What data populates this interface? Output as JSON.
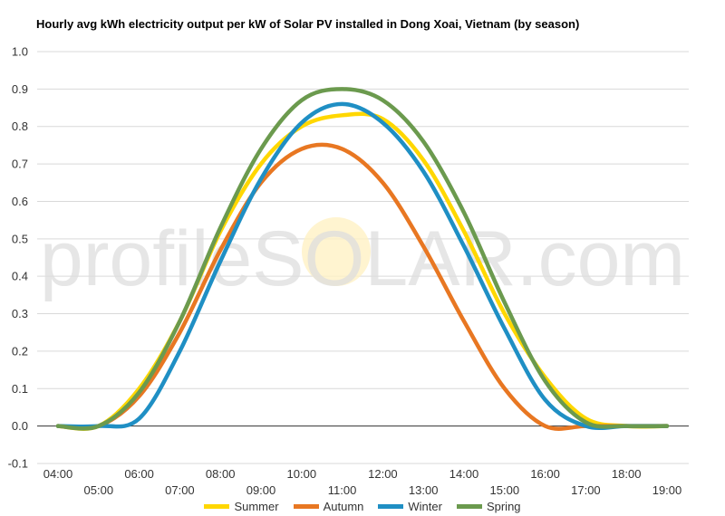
{
  "chart_data": {
    "type": "line",
    "title": "Hourly avg kWh electricity output per kW of Solar PV installed in Dong Xoai, Vietnam (by season)",
    "xlabel": "",
    "ylabel": "",
    "ylim": [
      -0.1,
      1.0
    ],
    "yticks": [
      "-0.1",
      "0.0",
      "0.1",
      "0.2",
      "0.3",
      "0.4",
      "0.5",
      "0.6",
      "0.7",
      "0.8",
      "0.9",
      "1.0"
    ],
    "x": [
      "04:00",
      "05:00",
      "06:00",
      "07:00",
      "08:00",
      "09:00",
      "10:00",
      "11:00",
      "12:00",
      "13:00",
      "14:00",
      "15:00",
      "16:00",
      "17:00",
      "18:00",
      "19:00"
    ],
    "grid": true,
    "legend_position": "bottom",
    "watermark": "profileSOLAR.com",
    "series": [
      {
        "name": "Summer",
        "color": "#ffd700",
        "values": [
          0.0,
          0.0,
          0.1,
          0.28,
          0.52,
          0.7,
          0.8,
          0.83,
          0.82,
          0.71,
          0.52,
          0.3,
          0.13,
          0.02,
          0.0,
          0.0
        ]
      },
      {
        "name": "Autumn",
        "color": "#e87722",
        "values": [
          0.0,
          0.0,
          0.08,
          0.25,
          0.47,
          0.65,
          0.74,
          0.74,
          0.65,
          0.48,
          0.28,
          0.1,
          0.0,
          0.0,
          0.0,
          0.0
        ]
      },
      {
        "name": "Winter",
        "color": "#1f8fc4",
        "values": [
          0.0,
          0.0,
          0.02,
          0.2,
          0.44,
          0.66,
          0.81,
          0.86,
          0.81,
          0.68,
          0.48,
          0.26,
          0.07,
          0.0,
          0.0,
          0.0
        ]
      },
      {
        "name": "Spring",
        "color": "#6b9a4e",
        "values": [
          0.0,
          0.0,
          0.09,
          0.28,
          0.53,
          0.74,
          0.87,
          0.9,
          0.87,
          0.76,
          0.57,
          0.33,
          0.12,
          0.01,
          0.0,
          0.0
        ]
      }
    ]
  }
}
